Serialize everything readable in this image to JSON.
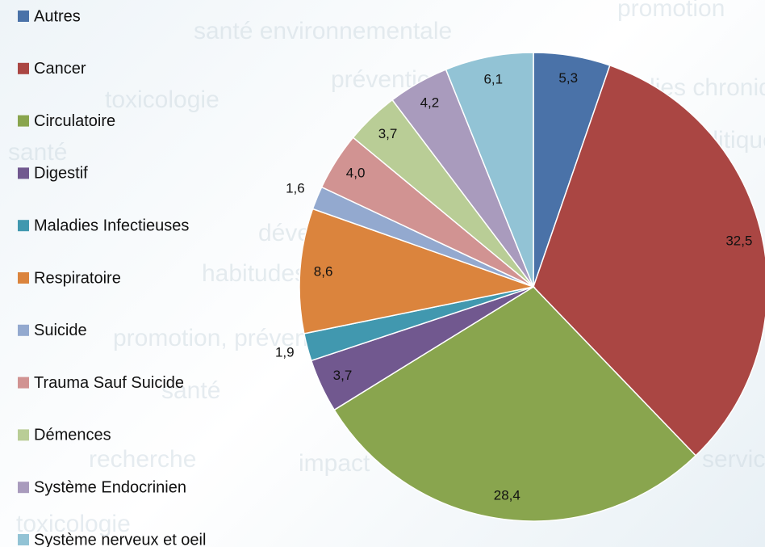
{
  "chart_data": {
    "type": "pie",
    "categories": [
      "Autres",
      "Cancer",
      "Circulatoire",
      "Digestif",
      "Maladies Infectieuses",
      "Respiratoire",
      "Suicide",
      "Trauma Sauf Suicide",
      "Démences",
      "Système Endocrinien",
      "Système nerveux et oeil"
    ],
    "values": [
      5.3,
      32.5,
      28.4,
      3.7,
      1.9,
      8.6,
      1.6,
      4.0,
      3.7,
      4.2,
      6.1
    ],
    "value_labels": [
      "5,3",
      "32,5",
      "28,4",
      "3,7",
      "1,9",
      "8,6",
      "1,6",
      "4,0",
      "3,7",
      "4,2",
      "6,1"
    ],
    "colors": [
      "#4a72a8",
      "#aa4643",
      "#89a54e",
      "#71588f",
      "#4198af",
      "#db843d",
      "#93a9cf",
      "#d19392",
      "#b9cd96",
      "#a99bbd",
      "#92c3d5"
    ],
    "legend": "left",
    "background_words": [
      "promotion",
      "santé environnementale",
      "toxicologie",
      "prévention",
      "maladies chroniques",
      "politiques",
      "santé",
      "développement",
      "habitudes de vie",
      "promotion, prévention et",
      "santé",
      "recherche",
      "impact",
      "services de laboratoire et de dépistage",
      "toxicologie"
    ]
  }
}
